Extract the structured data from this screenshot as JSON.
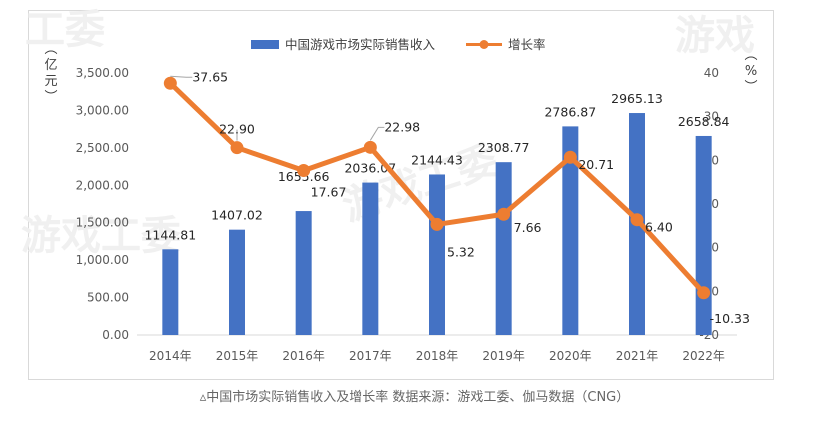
{
  "watermarks": [
    "工委",
    "游戏工委",
    "游戏工委",
    "游戏"
  ],
  "caption_marker": "▵",
  "caption": "中国市场实际销售收入及增长率 数据来源：游戏工委、伽马数据（CNG）",
  "colors": {
    "bar": "#4472C4",
    "line": "#ED7D31",
    "axis": "#d9d9d9",
    "text": "#595959"
  },
  "chart_data": {
    "type": "bar+line",
    "title": "",
    "categories": [
      "2014年",
      "2015年",
      "2016年",
      "2017年",
      "2018年",
      "2019年",
      "2020年",
      "2021年",
      "2022年"
    ],
    "series": [
      {
        "name": "中国游戏市场实际销售收入",
        "type": "bar",
        "axis": "left",
        "values": [
          1144.81,
          1407.02,
          1655.66,
          2036.07,
          2144.43,
          2308.77,
          2786.87,
          2965.13,
          2658.84
        ],
        "labels": [
          "1144.81",
          "1407.02",
          "1655.66",
          "2036.07",
          "2144.43",
          "2308.77",
          "2786.87",
          "2965.13",
          "2658.84"
        ]
      },
      {
        "name": "增长率",
        "type": "line",
        "axis": "right",
        "values": [
          37.65,
          22.9,
          17.67,
          22.98,
          5.32,
          7.66,
          20.71,
          6.4,
          -10.33
        ],
        "labels": [
          "37.65",
          "22.90",
          "17.67",
          "22.98",
          "5.32",
          "7.66",
          "20.71",
          "6.40",
          "-10.33"
        ]
      }
    ],
    "left_axis": {
      "label": "（亿元）",
      "ylim": [
        0,
        3500
      ],
      "ticks": [
        0,
        500,
        1000,
        1500,
        2000,
        2500,
        3000,
        3500
      ],
      "tick_labels": [
        "0.00",
        "500.00",
        "1,000.00",
        "1,500.00",
        "2,000.00",
        "2,500.00",
        "3,000.00",
        "3,500.00"
      ]
    },
    "right_axis": {
      "label": "（%）",
      "ylim": [
        -20,
        40
      ],
      "ticks": [
        -20,
        -10,
        0,
        10,
        20,
        30,
        40
      ],
      "tick_labels": [
        "-20",
        "-10",
        "0",
        "10",
        "20",
        "30",
        "40"
      ]
    },
    "legend": {
      "position": "top-center",
      "entries": [
        "中国游戏市场实际销售收入",
        "增长率"
      ]
    },
    "grid": false
  }
}
